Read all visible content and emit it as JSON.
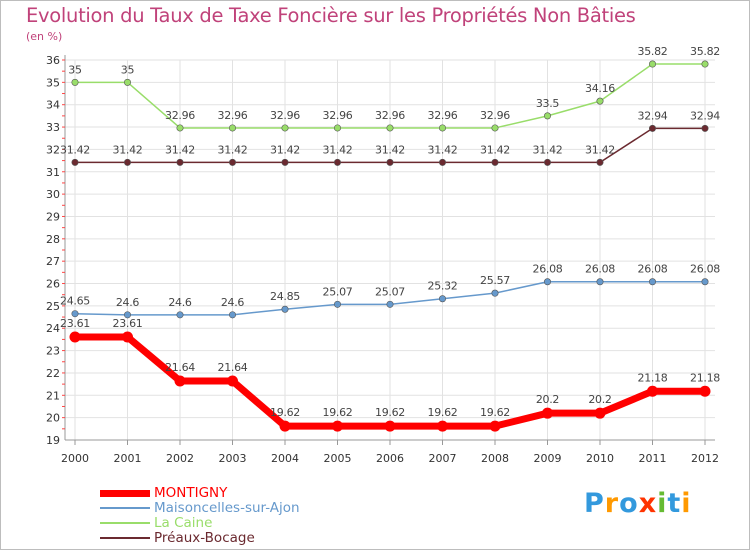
{
  "chart_data": {
    "type": "line",
    "title": "Evolution du Taux de Taxe Foncière sur les Propriétés Non Bâties",
    "ylabel": "(en %)",
    "xlabel": "",
    "categories": [
      "2000",
      "2001",
      "2002",
      "2003",
      "2004",
      "2005",
      "2006",
      "2007",
      "2008",
      "2009",
      "2010",
      "2011",
      "2012"
    ],
    "ylim": [
      19,
      36
    ],
    "yticks": [
      "19",
      "20",
      "21",
      "22",
      "23",
      "24",
      "25",
      "26",
      "27",
      "28",
      "29",
      "30",
      "31",
      "32",
      "33",
      "34",
      "35",
      "36"
    ],
    "series": [
      {
        "name": "Préaux-Bocage",
        "color": "#6b2a30",
        "values": [
          31.42,
          31.42,
          31.42,
          31.42,
          31.42,
          31.42,
          31.42,
          31.42,
          31.42,
          31.42,
          31.42,
          32.94,
          32.94
        ],
        "labels": [
          "31.42",
          "31.42",
          "31.42",
          "31.42",
          "31.42",
          "31.42",
          "31.42",
          "31.42",
          "31.42",
          "31.42",
          "31.42",
          "32.94",
          "32.94"
        ]
      },
      {
        "name": "La Caine",
        "color": "#99dd6a",
        "values": [
          35,
          35,
          32.96,
          32.96,
          32.96,
          32.96,
          32.96,
          32.96,
          32.96,
          33.5,
          34.16,
          35.82,
          35.82
        ],
        "labels": [
          "35",
          "35",
          "32.96",
          "32.96",
          "32.96",
          "32.96",
          "32.96",
          "32.96",
          "32.96",
          "33.5",
          "34.16",
          "35.82",
          "35.82"
        ]
      },
      {
        "name": "Maisoncelles-sur-Ajon",
        "color": "#6699cc",
        "values": [
          24.65,
          24.6,
          24.6,
          24.6,
          24.85,
          25.07,
          25.07,
          25.32,
          25.57,
          26.08,
          26.08,
          26.08,
          26.08
        ],
        "labels": [
          "24.65",
          "24.6",
          "24.6",
          "24.6",
          "24.85",
          "25.07",
          "25.07",
          "25.32",
          "25.57",
          "26.08",
          "26.08",
          "26.08",
          "26.08"
        ]
      },
      {
        "name": "MONTIGNY",
        "color": "#ff0000",
        "values": [
          23.61,
          23.61,
          21.64,
          21.64,
          19.62,
          19.62,
          19.62,
          19.62,
          19.62,
          20.2,
          20.2,
          21.18,
          21.18
        ],
        "labels": [
          "23.61",
          "23.61",
          "21.64",
          "21.64",
          "19.62",
          "19.62",
          "19.62",
          "19.62",
          "19.62",
          "20.2",
          "20.2",
          "21.18",
          "21.18"
        ]
      }
    ],
    "legend": [
      {
        "name": "MONTIGNY",
        "color": "#ff0000"
      },
      {
        "name": "Maisoncelles-sur-Ajon",
        "color": "#6699cc"
      },
      {
        "name": "La Caine",
        "color": "#99dd6a"
      },
      {
        "name": "Préaux-Bocage",
        "color": "#6b2a30"
      }
    ]
  },
  "logo": {
    "text": "Proxiti",
    "letters": [
      "P",
      "r",
      "o",
      "x",
      "i",
      "t",
      "i"
    ],
    "colors": [
      "#3399dd",
      "#ff9900",
      "#3399dd",
      "#ff3300",
      "#66bb33",
      "#3399dd",
      "#ff9900"
    ]
  }
}
